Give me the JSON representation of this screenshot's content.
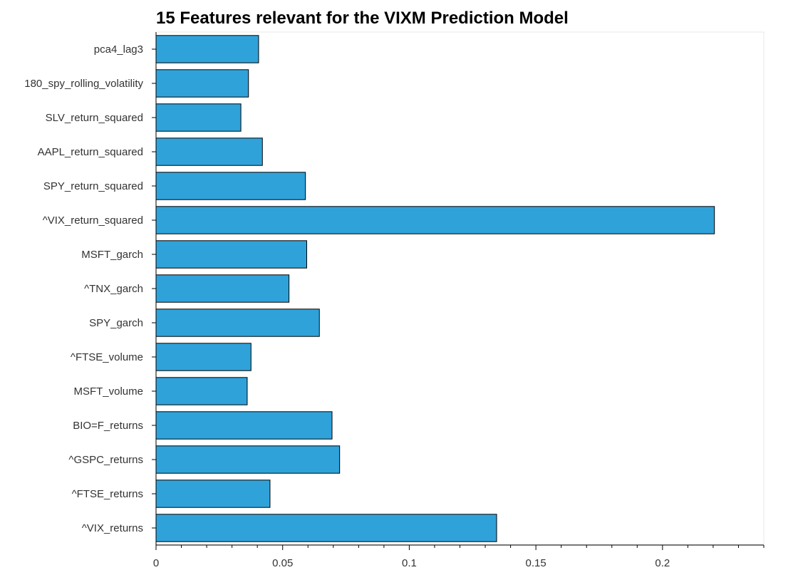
{
  "chart_data": {
    "type": "bar",
    "orientation": "horizontal",
    "title": "15 Features relevant for the VIXM Prediction Model",
    "xlabel": "",
    "ylabel": "",
    "xlim": [
      0,
      0.24
    ],
    "x_ticks": [
      0,
      0.05,
      0.1,
      0.15,
      0.2
    ],
    "x_tick_labels": [
      "0",
      "0.05",
      "0.1",
      "0.15",
      "0.2"
    ],
    "x_minor_tick_step": 0.01,
    "grid": false,
    "legend": false,
    "bar_color": "#30a2da",
    "bar_edge_color": "#000000",
    "categories": [
      "pca4_lag3",
      "180_spy_rolling_volatility",
      "SLV_return_squared",
      "AAPL_return_squared",
      "SPY_return_squared",
      "^VIX_return_squared",
      "MSFT_garch",
      "^TNX_garch",
      "SPY_garch",
      "^FTSE_volume",
      "MSFT_volume",
      "BIO=F_returns",
      "^GSPC_returns",
      "^FTSE_returns",
      "^VIX_returns"
    ],
    "values": [
      0.0405,
      0.0365,
      0.0335,
      0.042,
      0.059,
      0.2205,
      0.0595,
      0.0525,
      0.0645,
      0.0375,
      0.036,
      0.0695,
      0.0725,
      0.045,
      0.1345
    ]
  }
}
